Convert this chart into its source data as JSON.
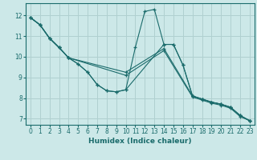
{
  "xlabel": "Humidex (Indice chaleur)",
  "background_color": "#cce8e8",
  "grid_color": "#b0d0d0",
  "line_color": "#1a6b6b",
  "marker": "+",
  "xlim": [
    -0.5,
    23.5
  ],
  "ylim": [
    6.7,
    12.6
  ],
  "yticks": [
    7,
    8,
    9,
    10,
    11,
    12
  ],
  "xticks": [
    0,
    1,
    2,
    3,
    4,
    5,
    6,
    7,
    8,
    9,
    10,
    11,
    12,
    13,
    14,
    15,
    16,
    17,
    18,
    19,
    20,
    21,
    22,
    23
  ],
  "series": [
    {
      "x": [
        0,
        1,
        2,
        3,
        4,
        5,
        6,
        7,
        8,
        9,
        10,
        11,
        12,
        13,
        14,
        15,
        16,
        17,
        18,
        19,
        20,
        21,
        22,
        23
      ],
      "y": [
        11.9,
        11.55,
        10.9,
        10.45,
        9.95,
        9.65,
        9.25,
        8.65,
        8.35,
        8.3,
        8.4,
        10.45,
        12.2,
        12.3,
        10.6,
        10.6,
        9.6,
        8.1,
        7.95,
        7.8,
        7.7,
        7.55,
        7.15,
        6.9
      ]
    },
    {
      "x": [
        0,
        1,
        2,
        3,
        4,
        5,
        6,
        7,
        8,
        9,
        10,
        14,
        15,
        16,
        17,
        18,
        19,
        20,
        21,
        22,
        23
      ],
      "y": [
        11.9,
        11.55,
        10.9,
        10.45,
        9.95,
        9.65,
        9.25,
        8.65,
        8.35,
        8.3,
        8.4,
        10.6,
        10.6,
        9.6,
        8.1,
        7.95,
        7.8,
        7.7,
        7.55,
        7.15,
        6.9
      ]
    },
    {
      "x": [
        0,
        1,
        2,
        3,
        4,
        10,
        14,
        17,
        18,
        19,
        20,
        21,
        22,
        23
      ],
      "y": [
        11.9,
        11.55,
        10.9,
        10.45,
        9.95,
        9.25,
        10.4,
        8.1,
        7.95,
        7.8,
        7.7,
        7.55,
        7.15,
        6.9
      ]
    },
    {
      "x": [
        0,
        1,
        2,
        3,
        4,
        10,
        14,
        17,
        18,
        19,
        20,
        21,
        22,
        23
      ],
      "y": [
        11.9,
        11.55,
        10.9,
        10.45,
        9.95,
        9.1,
        10.3,
        8.05,
        7.9,
        7.75,
        7.65,
        7.5,
        7.1,
        6.9
      ]
    }
  ]
}
